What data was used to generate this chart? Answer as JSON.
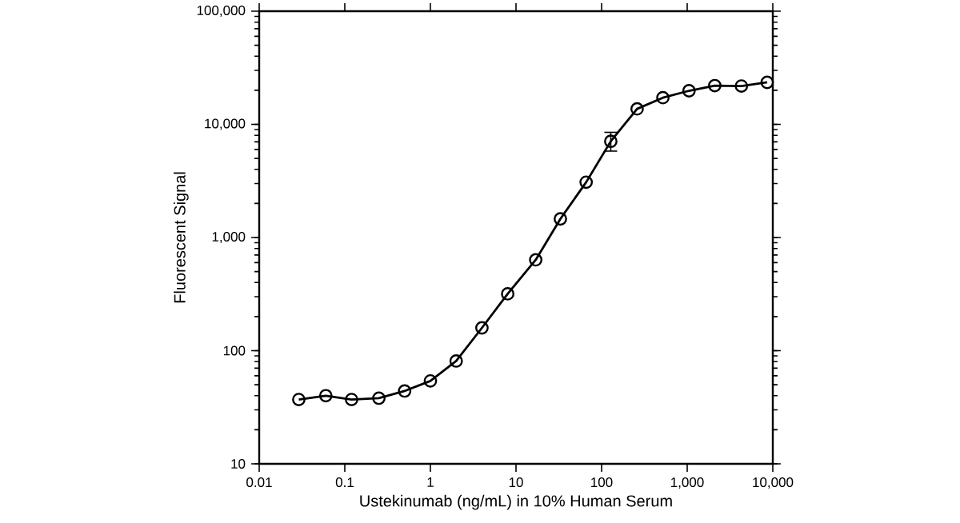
{
  "chart_data": {
    "type": "line",
    "xlabel": "Ustekinumab (ng/mL) in 10% Human Serum",
    "ylabel": "Fluorescent Signal",
    "x": [
      0.029,
      0.06,
      0.12,
      0.25,
      0.5,
      1,
      2,
      4,
      8,
      17,
      33,
      66,
      128,
      260,
      520,
      1050,
      2100,
      4300,
      8600
    ],
    "series": [
      {
        "color": "#000000",
        "values": [
          37,
          40,
          37,
          38,
          44,
          54,
          81,
          159,
          318,
          635,
          1460,
          3080,
          7080,
          13700,
          17200,
          19800,
          22000,
          21800,
          23500
        ],
        "errors": [
          null,
          null,
          null,
          null,
          null,
          null,
          null,
          null,
          null,
          null,
          null,
          null,
          [
            5800,
            8500
          ],
          null,
          null,
          null,
          null,
          null,
          null
        ]
      }
    ],
    "log": "xy",
    "xlim": [
      0.01,
      10000
    ],
    "ylim": [
      10,
      100000
    ],
    "xticks": [
      0.01,
      0.1,
      1,
      10,
      100,
      {
        "value": 1000,
        "label": "1,000"
      },
      {
        "value": 10000,
        "label": "10,000"
      }
    ],
    "yticks": [
      10,
      100,
      {
        "value": 1000,
        "label": "1,000"
      },
      {
        "value": 10000,
        "label": "10,000"
      },
      {
        "value": 100000,
        "label": "100,000"
      }
    ],
    "grid": false,
    "marker": "circle",
    "line_style": "solid"
  }
}
